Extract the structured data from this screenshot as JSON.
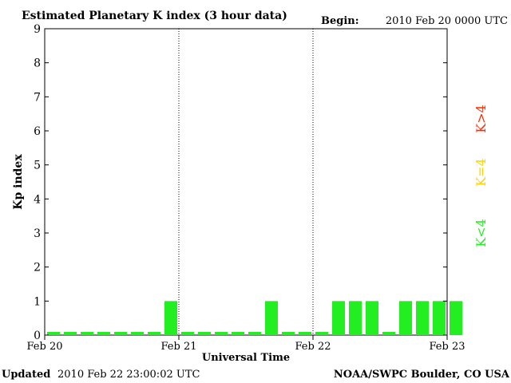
{
  "header": {
    "title": "Estimated Planetary K index (3 hour data)",
    "begin_label": "Begin:",
    "begin_value": "2010 Feb 20 0000 UTC"
  },
  "footer": {
    "updated_label": "Updated",
    "updated_value": "2010 Feb 22 23:00:02 UTC",
    "credit": "NOAA/SWPC Boulder, CO USA"
  },
  "legend": {
    "items": [
      {
        "label": "K>4",
        "color": "#ff2a00"
      },
      {
        "label": "K=4",
        "color": "#ffd200"
      },
      {
        "label": "K<4",
        "color": "#22ee22"
      }
    ]
  },
  "chart_data": {
    "type": "bar",
    "title": "Estimated Planetary K index (3 hour data)",
    "xlabel": "Universal Time",
    "ylabel": "Kp index",
    "ylim": [
      0,
      9
    ],
    "yticks": [
      0,
      1,
      2,
      3,
      4,
      5,
      6,
      7,
      8,
      9
    ],
    "xticks": [
      "Feb 20",
      "Feb 21",
      "Feb 22",
      "Feb 23"
    ],
    "bars_per_day": 8,
    "bar_color": "#22ee22",
    "day_separators": true,
    "series": [
      {
        "values": [
          0,
          0,
          0,
          0,
          0,
          0,
          0,
          1,
          0,
          0,
          0,
          0,
          0,
          1,
          0,
          0,
          0,
          1,
          1,
          1,
          0,
          1,
          1,
          1,
          1
        ]
      }
    ]
  }
}
